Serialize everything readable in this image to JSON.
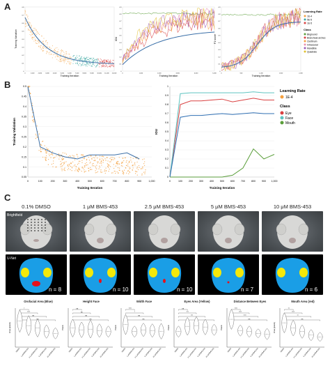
{
  "figure": {
    "panel_a": "A",
    "panel_b": "B",
    "panel_c": "C"
  },
  "panel_a": {
    "plot1": {
      "ylabel": "Training Variation",
      "xlabel": "Training Iteration",
      "xticks": [
        "0",
        "1,000",
        "2,000",
        "3,000",
        "4,000",
        "5,000",
        "6,000",
        "7,000",
        "8,000",
        "9,000",
        "10,000",
        "11,000",
        "12,000"
      ],
      "yticks": [
        "0",
        "0.1",
        "0.2",
        "0.3",
        "0.4",
        "0.5",
        "0.6",
        "0.7",
        "0.8"
      ]
    },
    "plot2": {
      "ylabel": "IOU",
      "xlabel": "Training Iteration",
      "xticks": [
        "0",
        "1,000",
        "2,000",
        "3,000",
        "4,000",
        "5,000"
      ],
      "yticks": [
        "0",
        "0.1",
        "0.2",
        "0.3",
        "0.4",
        "0.5",
        "0.6",
        "0.7",
        "0.8",
        "0.9"
      ]
    },
    "plot3": {
      "ylabel": "F1 score",
      "xlabel": "Training Iteration",
      "xticks": [
        "0",
        "500",
        "1,000",
        "1,500",
        "2,000"
      ],
      "yticks": [
        "0",
        "0.1",
        "0.2",
        "0.3",
        "0.4",
        "0.5",
        "0.6",
        "0.7",
        "0.8",
        "0.9"
      ]
    },
    "legend": {
      "lr_title": "Learning Rate",
      "lr_items": [
        {
          "label": "1E-4",
          "color": "#f4a040"
        },
        {
          "label": "5E-5",
          "color": "#3aa7a0"
        },
        {
          "label": "1E-5",
          "color": "#d94040"
        }
      ],
      "class_title": "Class",
      "class_items": [
        {
          "label": "Bkground",
          "color": "#5a9e3a"
        },
        {
          "label": "Brancheal arches",
          "color": "#d94040"
        },
        {
          "label": "Cleithrum",
          "color": "#f4a040"
        },
        {
          "label": "Intraocular",
          "color": "#e88fb0"
        },
        {
          "label": "Mandible",
          "color": "#9b59b6"
        },
        {
          "label": "Quadrate",
          "color": "#e0c030"
        }
      ]
    }
  },
  "panel_b": {
    "plot1": {
      "ylabel": "Training Validation",
      "xlabel": "Training Iteration",
      "xticks": [
        "0",
        "100",
        "200",
        "300",
        "400",
        "500",
        "600",
        "700",
        "800",
        "900",
        "1,000"
      ],
      "yticks": [
        "0.05",
        "0.1",
        "0.15",
        "0.2",
        "0.25",
        "0.3",
        "0.35",
        "0.4",
        "0.45",
        "0.5"
      ]
    },
    "plot2": {
      "ylabel": "IOU",
      "xlabel": "Training Iteration",
      "xticks": [
        "0",
        "100",
        "200",
        "300",
        "400",
        "500",
        "600",
        "700",
        "800",
        "900",
        "1,000"
      ],
      "yticks": [
        "0",
        "0.1",
        "0.2",
        "0.3",
        "0.4",
        "0.5",
        "0.6",
        "0.7",
        "0.8",
        "0.9",
        "1"
      ]
    },
    "legend": {
      "lr_title": "Learning Rate",
      "lr_items": [
        {
          "label": "1E-4",
          "color": "#f4a040"
        }
      ],
      "class_title": "Class",
      "class_items": [
        {
          "label": "Eye",
          "color": "#d94040"
        },
        {
          "label": "Face",
          "color": "#5ec4c0"
        },
        {
          "label": "Mouth",
          "color": "#5a9e3a"
        }
      ]
    }
  },
  "chart_data": [
    {
      "type": "line",
      "ylabel": "Training Validation",
      "xlabel": "Training Iteration",
      "x": [
        0,
        100,
        200,
        300,
        400,
        500,
        600,
        700,
        800,
        900
      ],
      "series": [
        {
          "values": [
            0.5,
            0.2,
            0.17,
            0.15,
            0.14,
            0.16,
            0.16,
            0.16,
            0.17,
            0.14
          ]
        }
      ],
      "xlim": [
        0,
        1000
      ],
      "ylim": [
        0.05,
        0.5
      ]
    },
    {
      "type": "line",
      "ylabel": "IOU",
      "xlabel": "Training Iteration",
      "x": [
        0,
        100,
        200,
        300,
        400,
        500,
        600,
        700,
        800,
        900,
        1000
      ],
      "series": [
        {
          "name": "Eye",
          "color": "#d94040",
          "values": [
            0,
            0.8,
            0.84,
            0.84,
            0.85,
            0.86,
            0.83,
            0.85,
            0.87,
            0.85,
            0.85
          ]
        },
        {
          "name": "Face",
          "color": "#5ec4c0",
          "values": [
            0,
            0.92,
            0.93,
            0.93,
            0.93,
            0.93,
            0.93,
            0.93,
            0.94,
            0.93,
            0.93
          ]
        },
        {
          "name": "Mouth",
          "color": "#5a9e3a",
          "values": [
            0,
            0,
            0,
            0,
            0,
            0,
            0.02,
            0.1,
            0.31,
            0.2,
            0.25
          ]
        },
        {
          "color": "#2f6fb3",
          "values": [
            0,
            0.66,
            0.68,
            0.68,
            0.69,
            0.7,
            0.69,
            0.7,
            0.71,
            0.7,
            0.7
          ]
        }
      ],
      "xlim": [
        0,
        1000
      ],
      "ylim": [
        0,
        1
      ]
    }
  ],
  "panel_c": {
    "conditions": [
      "0.1% DMSO",
      "1 μM BMS-453",
      "2.5 μM BMS-453",
      "5 μM BMS-453",
      "10 μM BMS-453"
    ],
    "row_brightfield": "Brightfield",
    "row_unet": "U-Net",
    "n_labels": [
      "n = 8",
      "n = 10",
      "n = 10",
      "n = 7",
      "n = 6"
    ],
    "violin_titles": [
      "Orofacial Area (Blue)",
      "Height Face",
      "Width Face",
      "Eyes Area (Yellow)",
      "Distance Between Eyes",
      "Mouth Area (red)"
    ],
    "violin_ylabels": [
      "Area (pixels)",
      "Pixels",
      "Pixels",
      "Pixels",
      "Pixels",
      "Area (pixels)"
    ],
    "violin_xlabels": [
      "DMSO",
      "1 μM BMS-453",
      "2.5 μM BMS-453",
      "5 μM BMS-453",
      "10 μM BMS-453"
    ],
    "significance": [
      [
        "*",
        "****",
        "ns",
        "ns"
      ],
      [
        "ns",
        "ns",
        "ns",
        "ns"
      ],
      [
        "****",
        "*",
        "ns",
        "ns"
      ],
      [
        "ns",
        "***",
        "***",
        "ns"
      ],
      [
        "****",
        "****",
        "****",
        "ns"
      ],
      [
        "**",
        "****",
        "**",
        "ns"
      ]
    ]
  }
}
